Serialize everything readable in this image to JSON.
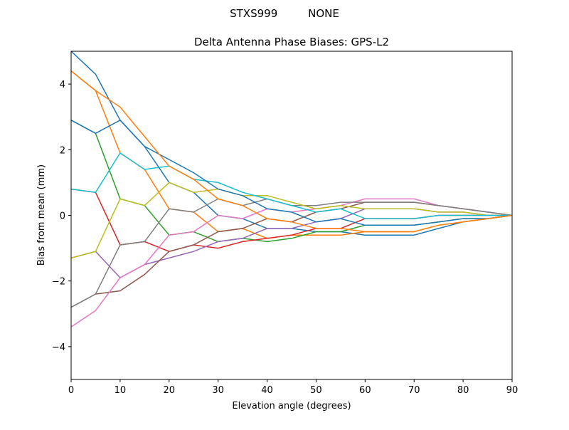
{
  "chart_data": {
    "type": "line",
    "suptitle": "STXS999         NONE",
    "title": "Delta Antenna Phase Biases: GPS-L2",
    "xlabel": "Elevation angle (degrees)",
    "ylabel": "Bias from mean (mm)",
    "xlim": [
      0,
      90
    ],
    "ylim": [
      -5,
      5
    ],
    "xticks": [
      0,
      10,
      20,
      30,
      40,
      50,
      60,
      70,
      80,
      90
    ],
    "yticks": [
      -4,
      -2,
      0,
      2,
      4
    ],
    "ytick_labels": [
      "−4",
      "−2",
      "0",
      "2",
      "4"
    ],
    "grid": false,
    "legend": "none",
    "x": [
      0,
      5,
      10,
      15,
      20,
      25,
      30,
      35,
      40,
      45,
      50,
      55,
      60,
      65,
      70,
      75,
      80,
      85,
      90
    ],
    "colors": [
      "#1f77b4",
      "#ff7f0e",
      "#2ca02c",
      "#d62728",
      "#9467bd",
      "#8c564b",
      "#e377c2",
      "#7f7f7f",
      "#bcbd22",
      "#17becf"
    ],
    "series": [
      {
        "values": [
          5.0,
          4.3,
          2.9,
          2.1,
          1.0,
          0.7,
          0.0,
          -0.1,
          -0.4,
          -0.4,
          -0.5,
          -0.5,
          -0.6,
          -0.6,
          -0.6,
          -0.4,
          -0.2,
          -0.1,
          0
        ]
      },
      {
        "values": [
          4.4,
          3.8,
          1.9,
          1.4,
          0.2,
          0.1,
          -0.5,
          -0.4,
          -0.7,
          -0.6,
          -0.6,
          -0.6,
          -0.5,
          -0.5,
          -0.5,
          -0.3,
          -0.2,
          -0.1,
          0
        ]
      },
      {
        "values": [
          2.9,
          2.5,
          0.5,
          0.3,
          -0.6,
          -0.5,
          -0.8,
          -0.7,
          -0.8,
          -0.7,
          -0.5,
          -0.5,
          -0.3,
          -0.3,
          -0.3,
          -0.2,
          -0.1,
          -0.1,
          0
        ]
      },
      {
        "values": [
          0.8,
          0.7,
          -0.9,
          -0.8,
          -1.1,
          -0.9,
          -1.0,
          -0.8,
          -0.7,
          -0.6,
          -0.4,
          -0.4,
          -0.1,
          -0.1,
          -0.1,
          0,
          0,
          0,
          0
        ]
      },
      {
        "values": [
          -1.3,
          -1.1,
          -1.9,
          -1.5,
          -1.3,
          -1.1,
          -0.8,
          -0.7,
          -0.4,
          -0.4,
          -0.2,
          -0.1,
          0.2,
          0.2,
          0.2,
          0.1,
          0.1,
          0,
          0
        ]
      },
      {
        "values": [
          -2.8,
          -2.4,
          -2.3,
          -1.8,
          -1.1,
          -0.9,
          -0.5,
          -0.4,
          -0.1,
          -0.2,
          0.1,
          0.2,
          0.4,
          0.4,
          0.4,
          0.3,
          0.2,
          0.1,
          0
        ]
      },
      {
        "values": [
          -3.4,
          -2.9,
          -1.9,
          -1.5,
          -0.6,
          -0.5,
          0.0,
          -0.1,
          0.2,
          0.1,
          0.2,
          0.3,
          0.5,
          0.5,
          0.5,
          0.3,
          0.2,
          0.1,
          0
        ]
      },
      {
        "values": [
          -2.8,
          -2.4,
          -0.9,
          -0.8,
          0.2,
          0.1,
          0.5,
          0.3,
          0.5,
          0.3,
          0.3,
          0.4,
          0.4,
          0.4,
          0.4,
          0.3,
          0.2,
          0.1,
          0
        ]
      },
      {
        "values": [
          -1.3,
          -1.1,
          0.5,
          0.3,
          1.0,
          0.7,
          0.8,
          0.6,
          0.6,
          0.4,
          0.2,
          0.3,
          0.2,
          0.2,
          0.2,
          0.1,
          0.1,
          0,
          0
        ]
      },
      {
        "values": [
          0.8,
          0.7,
          1.9,
          1.4,
          1.5,
          1.1,
          1.0,
          0.7,
          0.5,
          0.3,
          0.1,
          0.2,
          -0.1,
          -0.1,
          -0.1,
          0,
          0,
          0,
          0
        ]
      },
      {
        "values": [
          2.9,
          2.5,
          2.9,
          2.1,
          1.7,
          1.3,
          0.8,
          0.6,
          0.2,
          0.1,
          -0.2,
          -0.1,
          -0.3,
          -0.3,
          -0.3,
          -0.2,
          -0.1,
          -0.1,
          0
        ]
      },
      {
        "values": [
          4.4,
          3.8,
          3.3,
          2.4,
          1.5,
          1.1,
          0.5,
          0.3,
          -0.1,
          -0.2,
          -0.4,
          -0.4,
          -0.5,
          -0.5,
          -0.5,
          -0.3,
          -0.2,
          -0.1,
          0
        ]
      }
    ]
  }
}
